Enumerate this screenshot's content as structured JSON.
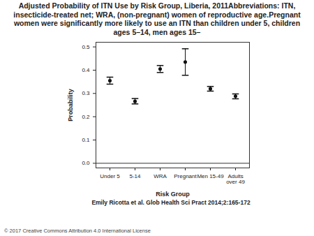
{
  "chart_data": {
    "type": "errorbar",
    "title": "Adjusted Probability of ITN Use by Risk Group, Liberia, 2011Abbreviations: ITN, insecticide-treated net; WRA, (non-pregnant) women of reproductive age.Pregnant women were significantly more likely to use an ITN than children under 5, children ages 5–14, men ages 15–",
    "x_label": "Risk Group",
    "y_label": "Probability",
    "categories": [
      "Under 5",
      "5-14",
      "WRA",
      "Pregnant",
      "Men 15-49",
      "Adults\nover 49"
    ],
    "values": [
      0.355,
      0.266,
      0.405,
      0.435,
      0.32,
      0.288
    ],
    "lower": [
      0.34,
      0.255,
      0.39,
      0.378,
      0.31,
      0.277
    ],
    "upper": [
      0.37,
      0.278,
      0.42,
      0.492,
      0.33,
      0.298
    ],
    "color": "#111111",
    "marker": "circle",
    "ylim": [
      -0.02,
      0.52
    ],
    "yticks": [
      {
        "value": 0,
        "label": "0.0"
      },
      {
        "value": 0.1,
        "label": "0.1"
      },
      {
        "value": 0.2,
        "label": "0.2"
      },
      {
        "value": 0.3,
        "label": "0.3"
      },
      {
        "value": 0.4,
        "label": "0.4"
      },
      {
        "value": 0.5,
        "label": "0.5"
      }
    ],
    "grid": false,
    "citation": "Emily Ricotta et al. Glob Health Sci Pract 2014;2:165-172",
    "footer": "© 2017 Creative Commons Attribution 4.0 International License"
  }
}
